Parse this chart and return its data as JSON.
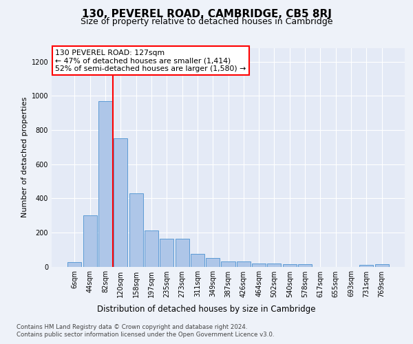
{
  "title1": "130, PEVEREL ROAD, CAMBRIDGE, CB5 8RJ",
  "title2": "Size of property relative to detached houses in Cambridge",
  "xlabel": "Distribution of detached houses by size in Cambridge",
  "ylabel": "Number of detached properties",
  "footer1": "Contains HM Land Registry data © Crown copyright and database right 2024.",
  "footer2": "Contains public sector information licensed under the Open Government Licence v3.0.",
  "annotation_line1": "130 PEVEREL ROAD: 127sqm",
  "annotation_line2": "← 47% of detached houses are smaller (1,414)",
  "annotation_line3": "52% of semi-detached houses are larger (1,580) →",
  "bar_labels": [
    "6sqm",
    "44sqm",
    "82sqm",
    "120sqm",
    "158sqm",
    "197sqm",
    "235sqm",
    "273sqm",
    "311sqm",
    "349sqm",
    "387sqm",
    "426sqm",
    "464sqm",
    "502sqm",
    "540sqm",
    "578sqm",
    "617sqm",
    "655sqm",
    "693sqm",
    "731sqm",
    "769sqm"
  ],
  "bar_values": [
    25,
    300,
    970,
    750,
    430,
    210,
    165,
    165,
    75,
    50,
    30,
    30,
    18,
    18,
    15,
    15,
    0,
    0,
    0,
    12,
    15
  ],
  "bar_color": "#aec6e8",
  "bar_edgecolor": "#5b9bd5",
  "vline_pos": 2.5,
  "vline_color": "red",
  "ylim": [
    0,
    1280
  ],
  "yticks": [
    0,
    200,
    400,
    600,
    800,
    1000,
    1200
  ],
  "background_color": "#eef2f9",
  "plot_bg_color": "#e4eaf6",
  "grid_color": "white",
  "title1_fontsize": 11,
  "title2_fontsize": 9,
  "ylabel_fontsize": 8,
  "xlabel_fontsize": 8.5,
  "tick_fontsize": 7,
  "footer_fontsize": 6.2,
  "annot_fontsize": 7.8
}
